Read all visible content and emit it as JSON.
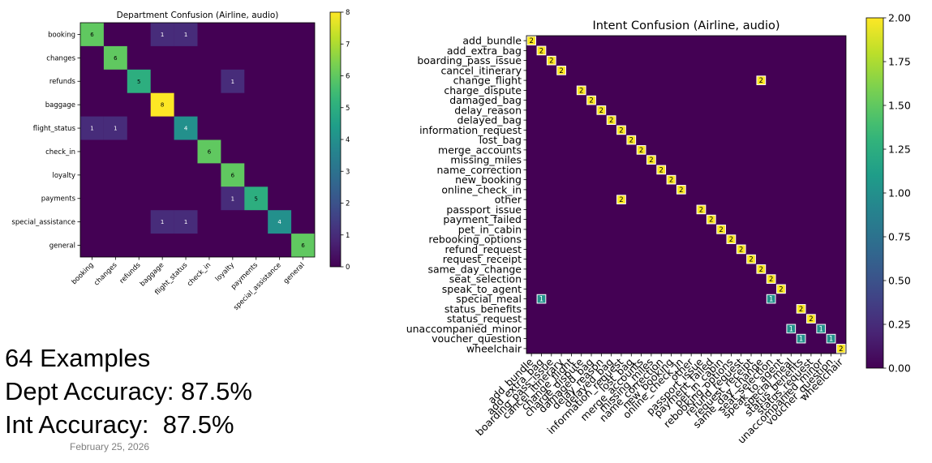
{
  "summary": {
    "examples": "64 Examples",
    "dept_accuracy": "Dept Accuracy: 87.5%",
    "int_accuracy": "Int Accuracy:  87.5%",
    "date": "February 25, 2026"
  },
  "chart_data": [
    {
      "type": "heatmap",
      "title": "Department Confusion (Airline, audio)",
      "row_labels": [
        "booking",
        "changes",
        "refunds",
        "baggage",
        "flight_status",
        "check_in",
        "loyalty",
        "payments",
        "special_assistance",
        "general"
      ],
      "col_labels": [
        "booking",
        "changes",
        "refunds",
        "baggage",
        "flight_status",
        "check_in",
        "loyalty",
        "payments",
        "special_assistance",
        "general"
      ],
      "cells": [
        [
          0,
          0,
          6
        ],
        [
          0,
          3,
          1
        ],
        [
          0,
          4,
          1
        ],
        [
          1,
          1,
          6
        ],
        [
          2,
          2,
          5
        ],
        [
          2,
          6,
          1
        ],
        [
          3,
          3,
          8
        ],
        [
          4,
          0,
          1
        ],
        [
          4,
          1,
          1
        ],
        [
          4,
          4,
          4
        ],
        [
          5,
          5,
          6
        ],
        [
          6,
          6,
          6
        ],
        [
          7,
          6,
          1
        ],
        [
          7,
          7,
          5
        ],
        [
          8,
          3,
          1
        ],
        [
          8,
          4,
          1
        ],
        [
          8,
          8,
          4
        ],
        [
          9,
          9,
          6
        ]
      ],
      "colorbar_range": [
        0,
        8
      ],
      "colorbar_ticks": [
        "0",
        "1",
        "2",
        "3",
        "4",
        "5",
        "6",
        "7",
        "8"
      ]
    },
    {
      "type": "heatmap",
      "title": "Intent Confusion (Airline, audio)",
      "row_labels": [
        "add_bundle",
        "add_extra_bag",
        "boarding_pass_issue",
        "cancel_itinerary",
        "change_flight",
        "charge_dispute",
        "damaged_bag",
        "delay_reason",
        "delayed_bag",
        "information_request",
        "lost_bag",
        "merge_accounts",
        "missing_miles",
        "name_correction",
        "new_booking",
        "online_check_in",
        "other",
        "passport_issue",
        "payment_failed",
        "pet_in_cabin",
        "rebooking_options",
        "refund_request",
        "request_receipt",
        "same_day_change",
        "seat_selection",
        "speak_to_agent",
        "special_meal",
        "status_benefits",
        "status_request",
        "unaccompanied_minor",
        "voucher_question",
        "wheelchair"
      ],
      "col_labels": [
        "add_bundle",
        "add_extra_bag",
        "boarding_pass_issue",
        "cancel_itinerary",
        "change_flight",
        "charge_dispute",
        "damaged_bag",
        "delay_reason",
        "delayed_bag",
        "information_request",
        "lost_bag",
        "merge_accounts",
        "missing_miles",
        "name_correction",
        "new_booking",
        "online_check_in",
        "other",
        "passport_issue",
        "payment_failed",
        "pet_in_cabin",
        "rebooking_options",
        "refund_request",
        "request_receipt",
        "same_day_change",
        "seat_selection",
        "speak_to_agent",
        "special_meal",
        "status_benefits",
        "status_request",
        "unaccompanied_minor",
        "voucher_question",
        "wheelchair"
      ],
      "cells": [
        [
          0,
          0,
          2
        ],
        [
          1,
          1,
          2
        ],
        [
          2,
          2,
          2
        ],
        [
          3,
          3,
          2
        ],
        [
          4,
          23,
          2
        ],
        [
          5,
          5,
          2
        ],
        [
          6,
          6,
          2
        ],
        [
          7,
          7,
          2
        ],
        [
          8,
          8,
          2
        ],
        [
          9,
          9,
          2
        ],
        [
          10,
          10,
          2
        ],
        [
          11,
          11,
          2
        ],
        [
          12,
          12,
          2
        ],
        [
          13,
          13,
          2
        ],
        [
          14,
          14,
          2
        ],
        [
          15,
          15,
          2
        ],
        [
          16,
          9,
          2
        ],
        [
          17,
          17,
          2
        ],
        [
          18,
          18,
          2
        ],
        [
          19,
          19,
          2
        ],
        [
          20,
          20,
          2
        ],
        [
          21,
          21,
          2
        ],
        [
          22,
          22,
          2
        ],
        [
          23,
          23,
          2
        ],
        [
          24,
          24,
          2
        ],
        [
          25,
          25,
          2
        ],
        [
          26,
          1,
          1
        ],
        [
          26,
          24,
          1
        ],
        [
          27,
          27,
          2
        ],
        [
          28,
          28,
          2
        ],
        [
          29,
          26,
          1
        ],
        [
          29,
          29,
          1
        ],
        [
          30,
          27,
          1
        ],
        [
          30,
          30,
          1
        ],
        [
          31,
          31,
          2
        ]
      ],
      "colorbar_range": [
        0,
        2
      ],
      "colorbar_ticks": [
        "0.00",
        "0.25",
        "0.50",
        "0.75",
        "1.00",
        "1.25",
        "1.50",
        "1.75",
        "2.00"
      ]
    }
  ]
}
